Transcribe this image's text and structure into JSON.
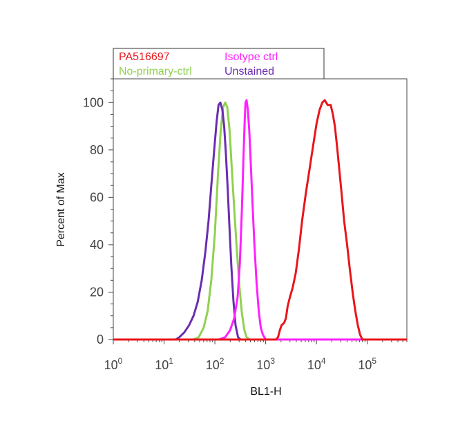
{
  "chart_data": {
    "type": "line",
    "xlabel": "BL1-H",
    "ylabel": "Percent of Max",
    "x_scale": "log",
    "xlim": [
      1,
      600000
    ],
    "ylim": [
      0,
      110
    ],
    "x_ticks": [
      {
        "value": 1,
        "base": "10",
        "exp": "0"
      },
      {
        "value": 10,
        "base": "10",
        "exp": "1"
      },
      {
        "value": 100,
        "base": "10",
        "exp": "2"
      },
      {
        "value": 1000,
        "base": "10",
        "exp": "3"
      },
      {
        "value": 10000,
        "base": "10",
        "exp": "4"
      },
      {
        "value": 100000,
        "base": "10",
        "exp": "5"
      }
    ],
    "y_ticks": [
      0,
      20,
      40,
      60,
      80,
      100
    ],
    "grid": false,
    "legend_position": "top-left",
    "series": [
      {
        "name": "PA516697",
        "color": "#e8151b",
        "points": [
          [
            1,
            0
          ],
          [
            1600,
            0
          ],
          [
            1750,
            1
          ],
          [
            1900,
            4
          ],
          [
            2050,
            6
          ],
          [
            2300,
            7
          ],
          [
            2500,
            9
          ],
          [
            2700,
            14
          ],
          [
            3000,
            18
          ],
          [
            3400,
            22
          ],
          [
            3900,
            28
          ],
          [
            4500,
            38
          ],
          [
            5200,
            50
          ],
          [
            6200,
            62
          ],
          [
            7300,
            72
          ],
          [
            8600,
            82
          ],
          [
            10000,
            91
          ],
          [
            11500,
            97
          ],
          [
            13000,
            100
          ],
          [
            14500,
            101
          ],
          [
            16500,
            99
          ],
          [
            19000,
            99
          ],
          [
            21000,
            95
          ],
          [
            23000,
            90
          ],
          [
            25500,
            81
          ],
          [
            28000,
            72
          ],
          [
            31000,
            62
          ],
          [
            35000,
            50
          ],
          [
            40000,
            40
          ],
          [
            45000,
            30
          ],
          [
            52000,
            19
          ],
          [
            58000,
            12
          ],
          [
            65000,
            6
          ],
          [
            72000,
            2
          ],
          [
            80000,
            0
          ],
          [
            600000,
            0
          ]
        ]
      },
      {
        "name": "Isotype ctrl",
        "color": "#ff20ff",
        "points": [
          [
            1,
            0
          ],
          [
            120,
            0
          ],
          [
            160,
            1
          ],
          [
            200,
            4
          ],
          [
            240,
            9
          ],
          [
            280,
            18
          ],
          [
            310,
            32
          ],
          [
            340,
            55
          ],
          [
            365,
            77
          ],
          [
            385,
            92
          ],
          [
            400,
            100
          ],
          [
            420,
            101
          ],
          [
            445,
            97
          ],
          [
            475,
            88
          ],
          [
            510,
            74
          ],
          [
            550,
            57
          ],
          [
            600,
            40
          ],
          [
            660,
            24
          ],
          [
            730,
            12
          ],
          [
            800,
            5
          ],
          [
            880,
            2
          ],
          [
            1000,
            0
          ],
          [
            600000,
            0
          ]
        ]
      },
      {
        "name": "No-primary-ctrl",
        "color": "#8fd14f",
        "points": [
          [
            1,
            0
          ],
          [
            38,
            0
          ],
          [
            48,
            1
          ],
          [
            60,
            5
          ],
          [
            72,
            12
          ],
          [
            85,
            25
          ],
          [
            100,
            45
          ],
          [
            115,
            70
          ],
          [
            130,
            88
          ],
          [
            145,
            98
          ],
          [
            160,
            100
          ],
          [
            175,
            98
          ],
          [
            195,
            88
          ],
          [
            215,
            72
          ],
          [
            240,
            55
          ],
          [
            270,
            38
          ],
          [
            305,
            22
          ],
          [
            340,
            11
          ],
          [
            380,
            4
          ],
          [
            420,
            1
          ],
          [
            480,
            0
          ],
          [
            600000,
            0
          ]
        ]
      },
      {
        "name": "Unstained",
        "color": "#6a2db0",
        "points": [
          [
            1,
            0
          ],
          [
            17,
            0
          ],
          [
            20,
            1
          ],
          [
            25,
            3
          ],
          [
            31,
            6
          ],
          [
            38,
            10
          ],
          [
            46,
            16
          ],
          [
            55,
            25
          ],
          [
            65,
            37
          ],
          [
            75,
            50
          ],
          [
            85,
            65
          ],
          [
            97,
            80
          ],
          [
            108,
            92
          ],
          [
            118,
            99
          ],
          [
            128,
            100
          ],
          [
            140,
            97
          ],
          [
            152,
            90
          ],
          [
            165,
            78
          ],
          [
            180,
            62
          ],
          [
            195,
            46
          ],
          [
            212,
            30
          ],
          [
            232,
            16
          ],
          [
            255,
            6
          ],
          [
            285,
            1
          ],
          [
            320,
            0
          ],
          [
            600000,
            0
          ]
        ]
      }
    ]
  }
}
